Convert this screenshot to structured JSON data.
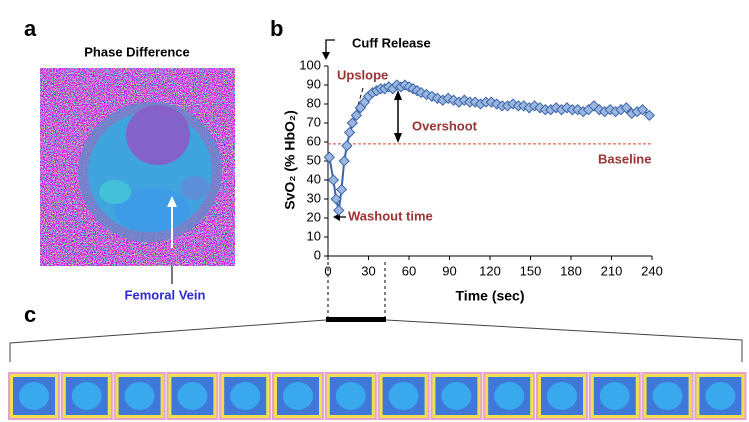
{
  "panel_labels": [
    "a",
    "b",
    "c"
  ],
  "image_title": "Phase Difference",
  "image_annotation": "Femoral Vein",
  "chart_data": {
    "type": "line",
    "x_label": "Time (sec)",
    "y_label": "SvO₂ (% HbO₂)",
    "x": [
      1,
      4,
      6,
      8,
      10,
      12,
      14,
      16,
      18,
      21,
      24,
      27,
      30,
      33,
      36,
      39,
      42,
      45,
      48,
      51,
      54,
      57,
      60,
      63,
      66,
      69,
      73,
      77,
      81,
      85,
      89,
      93,
      97,
      101,
      105,
      109,
      113,
      117,
      121,
      125,
      129,
      133,
      137,
      141,
      145,
      149,
      153,
      157,
      161,
      165,
      169,
      173,
      177,
      181,
      185,
      189,
      193,
      197,
      201,
      205,
      209,
      213,
      217,
      221,
      225,
      229,
      233,
      238
    ],
    "values": [
      52,
      40,
      30,
      24,
      35,
      50,
      58,
      65,
      70,
      74,
      78,
      81,
      84,
      86,
      87,
      88,
      88,
      89,
      88,
      90,
      89,
      90,
      89,
      88,
      87,
      86,
      85,
      84,
      83,
      82,
      83,
      82,
      81,
      82,
      81,
      81,
      80,
      81,
      81,
      80,
      79,
      79,
      80,
      79,
      79,
      78,
      79,
      78,
      77,
      77,
      78,
      77,
      78,
      77,
      77,
      76,
      77,
      79,
      77,
      76,
      77,
      76,
      77,
      78,
      75,
      76,
      77,
      74
    ],
    "color": "#3a64a8",
    "marker_color": "#9bb7e0",
    "xlim": [
      0,
      240
    ],
    "xticks": [
      0,
      30,
      60,
      90,
      120,
      150,
      180,
      210,
      240
    ],
    "ylim": [
      0,
      100
    ],
    "yticks": [
      0,
      10,
      20,
      30,
      40,
      50,
      60,
      70,
      80,
      90,
      100
    ],
    "baseline": 59,
    "baseline_color": "#e0442a",
    "annotations": [
      "Cuff Release",
      "Upslope",
      "Overshoot",
      "Baseline",
      "Washout time"
    ]
  }
}
